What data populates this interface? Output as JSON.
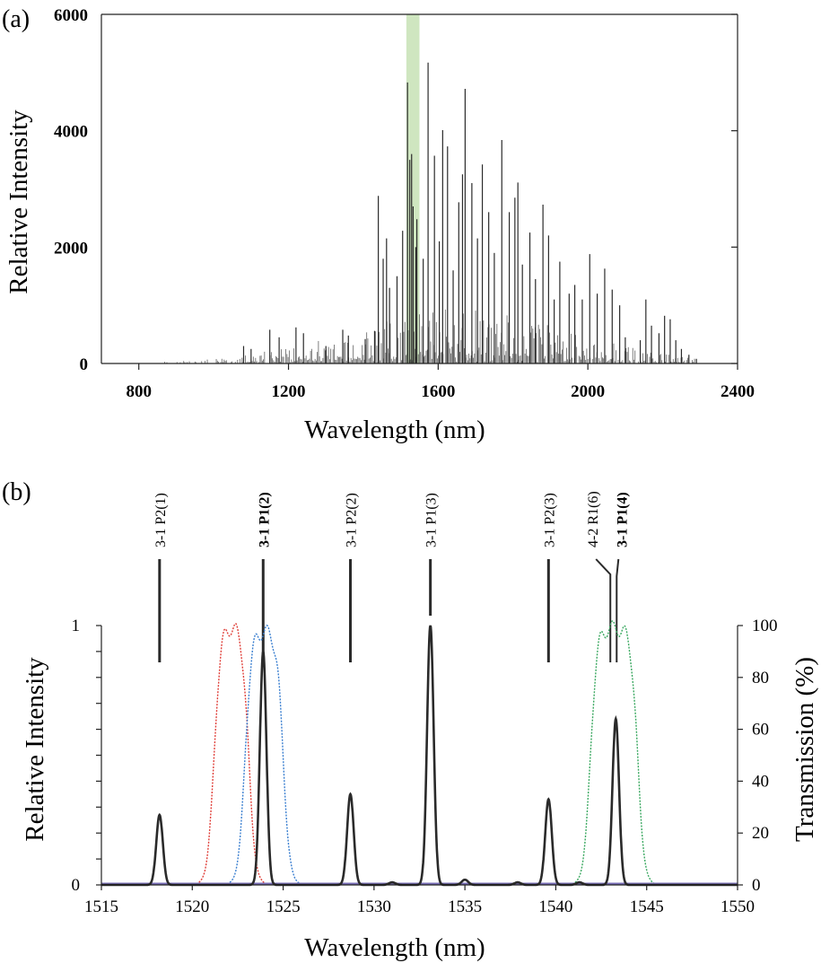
{
  "panel_a_label": "(a)",
  "panel_b_label": "(b)",
  "colors": {
    "axis": "#222222",
    "spectrum": "#2a2a2a",
    "highlight": "#cfe6c0",
    "filter_red": "#e0403a",
    "filter_blue": "#3a7fd0",
    "filter_green": "#3aa860",
    "baseline": "#7a6fb8"
  },
  "chart_data": [
    {
      "type": "bar",
      "title": "",
      "xlabel": "Wavelength (nm)",
      "ylabel": "Relative Intensity",
      "xlim": [
        700,
        2400
      ],
      "ylim": [
        0,
        6000
      ],
      "xticks": [
        800,
        1200,
        1600,
        2000,
        2400
      ],
      "yticks": [
        0,
        2000,
        4000,
        6000
      ],
      "highlight_band": [
        1515,
        1550
      ],
      "peaks": [
        {
          "x": 1080,
          "y": 300
        },
        {
          "x": 1100,
          "y": 250
        },
        {
          "x": 1150,
          "y": 580
        },
        {
          "x": 1175,
          "y": 450
        },
        {
          "x": 1220,
          "y": 620
        },
        {
          "x": 1240,
          "y": 520
        },
        {
          "x": 1300,
          "y": 300
        },
        {
          "x": 1345,
          "y": 580
        },
        {
          "x": 1360,
          "y": 480
        },
        {
          "x": 1405,
          "y": 420
        },
        {
          "x": 1430,
          "y": 560
        },
        {
          "x": 1440,
          "y": 2880
        },
        {
          "x": 1453,
          "y": 1800
        },
        {
          "x": 1462,
          "y": 2150
        },
        {
          "x": 1470,
          "y": 1300
        },
        {
          "x": 1490,
          "y": 1500
        },
        {
          "x": 1505,
          "y": 2280
        },
        {
          "x": 1518,
          "y": 4830
        },
        {
          "x": 1524,
          "y": 3500
        },
        {
          "x": 1529,
          "y": 3600
        },
        {
          "x": 1533,
          "y": 2700
        },
        {
          "x": 1540,
          "y": 2000
        },
        {
          "x": 1543,
          "y": 2480
        },
        {
          "x": 1560,
          "y": 1800
        },
        {
          "x": 1573,
          "y": 5170
        },
        {
          "x": 1590,
          "y": 3570
        },
        {
          "x": 1603,
          "y": 2100
        },
        {
          "x": 1612,
          "y": 4010
        },
        {
          "x": 1625,
          "y": 3730
        },
        {
          "x": 1640,
          "y": 1600
        },
        {
          "x": 1655,
          "y": 2770
        },
        {
          "x": 1665,
          "y": 3250
        },
        {
          "x": 1672,
          "y": 4720
        },
        {
          "x": 1690,
          "y": 3100
        },
        {
          "x": 1705,
          "y": 2150
        },
        {
          "x": 1718,
          "y": 3420
        },
        {
          "x": 1735,
          "y": 2600
        },
        {
          "x": 1750,
          "y": 1900
        },
        {
          "x": 1770,
          "y": 3840
        },
        {
          "x": 1790,
          "y": 2600
        },
        {
          "x": 1805,
          "y": 2850
        },
        {
          "x": 1813,
          "y": 3110
        },
        {
          "x": 1825,
          "y": 1700
        },
        {
          "x": 1845,
          "y": 2250
        },
        {
          "x": 1860,
          "y": 1450
        },
        {
          "x": 1880,
          "y": 2730
        },
        {
          "x": 1895,
          "y": 2200
        },
        {
          "x": 1910,
          "y": 1100
        },
        {
          "x": 1925,
          "y": 1750
        },
        {
          "x": 1950,
          "y": 1200
        },
        {
          "x": 1965,
          "y": 1350
        },
        {
          "x": 1985,
          "y": 1100
        },
        {
          "x": 2005,
          "y": 1880
        },
        {
          "x": 2025,
          "y": 1200
        },
        {
          "x": 2045,
          "y": 1630
        },
        {
          "x": 2065,
          "y": 1270
        },
        {
          "x": 2085,
          "y": 1000
        },
        {
          "x": 2100,
          "y": 450
        },
        {
          "x": 2140,
          "y": 400
        },
        {
          "x": 2155,
          "y": 1100
        },
        {
          "x": 2170,
          "y": 650
        },
        {
          "x": 2190,
          "y": 520
        },
        {
          "x": 2205,
          "y": 820
        },
        {
          "x": 2220,
          "y": 760
        },
        {
          "x": 2235,
          "y": 400
        },
        {
          "x": 2250,
          "y": 250
        },
        {
          "x": 2270,
          "y": 150
        },
        {
          "x": 2290,
          "y": 80
        }
      ]
    },
    {
      "type": "line",
      "title": "",
      "xlabel": "Wavelength (nm)",
      "ylabel": "Relative Intensity",
      "y2label": "Transmission (%)",
      "xlim": [
        1515,
        1550
      ],
      "ylim": [
        0,
        1
      ],
      "y2lim": [
        0,
        100
      ],
      "xticks": [
        1515,
        1520,
        1525,
        1530,
        1535,
        1540,
        1545,
        1550
      ],
      "yticks": [
        0,
        1
      ],
      "y2ticks": [
        0,
        20,
        40,
        60,
        80,
        100
      ],
      "spectrum_peaks": [
        {
          "x": 1518.2,
          "y": 0.27
        },
        {
          "x": 1523.9,
          "y": 0.9
        },
        {
          "x": 1528.7,
          "y": 0.35
        },
        {
          "x": 1533.1,
          "y": 1.0
        },
        {
          "x": 1539.6,
          "y": 0.33
        },
        {
          "x": 1543.3,
          "y": 0.64
        },
        {
          "x": 1531.0,
          "y": 0.01
        },
        {
          "x": 1535.0,
          "y": 0.02
        },
        {
          "x": 1537.9,
          "y": 0.01
        },
        {
          "x": 1541.3,
          "y": 0.01
        }
      ],
      "filters": [
        {
          "name": "red",
          "left": 1521.2,
          "right": 1523.1,
          "peak": 100
        },
        {
          "name": "blue",
          "left": 1522.9,
          "right": 1525.0,
          "peak": 98
        },
        {
          "name": "green",
          "left": 1541.9,
          "right": 1544.5,
          "peak": 99
        }
      ],
      "line_markers": [
        {
          "label": "3-1 P2(1)",
          "x": 1518.2,
          "bold": false
        },
        {
          "label": "3-1 P1(2)",
          "x": 1523.9,
          "bold": true
        },
        {
          "label": "3-1 P2(2)",
          "x": 1528.7,
          "bold": false
        },
        {
          "label": "3-1 P1(3)",
          "x": 1533.1,
          "bold": false
        },
        {
          "label": "3-1 P2(3)",
          "x": 1539.6,
          "bold": false
        },
        {
          "label": "4-2 R1(6)",
          "x": 1543.1,
          "bold": false
        },
        {
          "label": "3-1 P1(4)",
          "x": 1543.3,
          "bold": true
        }
      ]
    }
  ]
}
